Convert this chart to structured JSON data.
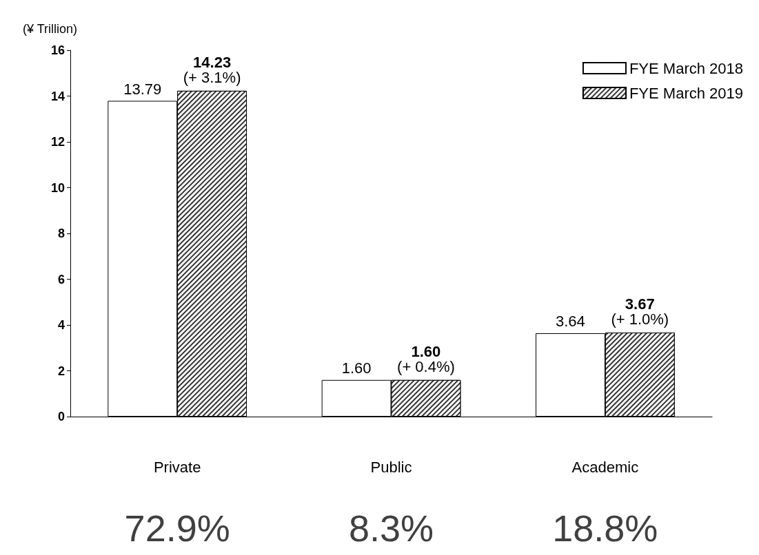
{
  "chart_data": {
    "type": "bar",
    "ylabel": "(¥ Trillion)",
    "categories": [
      "Private",
      "Public",
      "Academic"
    ],
    "series": [
      {
        "name": "FYE March 2018",
        "color": "#ffffff",
        "values": [
          13.79,
          1.6,
          3.64
        ],
        "value_labels": [
          "13.79",
          "1.60",
          "3.64"
        ]
      },
      {
        "name": "FYE March 2019",
        "color": "#333333",
        "values": [
          14.23,
          1.6,
          3.67
        ],
        "value_labels": [
          "14.23",
          "1.60",
          "3.67"
        ]
      }
    ],
    "ylim": [
      0,
      16
    ],
    "yticks": [
      0,
      2,
      4,
      6,
      8,
      10,
      12,
      14,
      16
    ],
    "grid": false,
    "legend": "top right",
    "annotations": [
      {
        "text": "(+ 3.1%)",
        "x": "Private",
        "y": 14.23
      },
      {
        "text": "(+ 0.4%)",
        "x": "Public",
        "y": 1.6
      },
      {
        "text": "(+ 1.0%)",
        "x": "Academic",
        "y": 3.67
      },
      "72.9%",
      "8.3%",
      "18.8%"
    ]
  }
}
